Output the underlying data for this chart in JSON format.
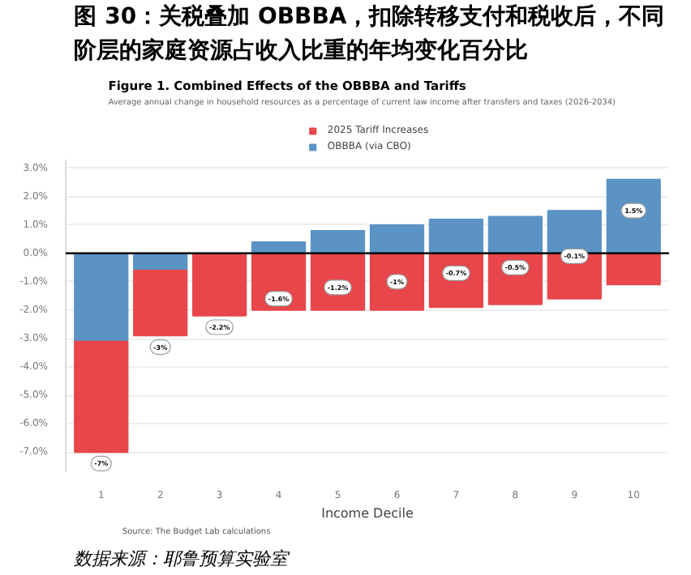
{
  "chart_data": {
    "type": "bar",
    "title": "图 30：关税叠加 OBBBA，扣除转移支付和税收后，不同阶层的家庭资源占收入比重的年均变化百分比",
    "subtitle": "Figure 1. Combined Effects of the OBBBA and Tariffs",
    "annotations": [
      "Average annual change in household resources as a percentage of current law income after transfers and taxes (2026-2034)",
      "Source: The Budget Lab calculations",
      "数据来源：耶鲁预算实验室"
    ],
    "xlabel": "Income Decile",
    "categories": [
      "1",
      "2",
      "3",
      "4",
      "5",
      "6",
      "7",
      "8",
      "9",
      "10"
    ],
    "stacked": true,
    "series": [
      {
        "name": "OBBBA (via CBO)",
        "color": "#5b93c5",
        "values": [
          -3.1,
          -0.6,
          0,
          0.4,
          0.8,
          1.0,
          1.2,
          1.3,
          1.5,
          2.6
        ]
      },
      {
        "name": "2025 Tariff Increases",
        "color": "#e8464a",
        "values": [
          -3.9,
          -2.3,
          -2.2,
          -2.0,
          -2.0,
          -2.0,
          -1.9,
          -1.8,
          -1.6,
          -1.1
        ]
      }
    ],
    "totals": [
      "-7%",
      "-3%",
      "-2.2%",
      "-1.6%",
      "-1.2%",
      "-1%",
      "-0.7%",
      "-0.5%",
      "-0.1%",
      "1.5%"
    ],
    "ylim": [
      -7.7,
      3.3
    ],
    "yticks": [
      {
        "value": -7,
        "label": "-7.0%"
      },
      {
        "value": -6,
        "label": "-6.0%"
      },
      {
        "value": -5,
        "label": "-5.0%"
      },
      {
        "value": -4,
        "label": "-4.0%"
      },
      {
        "value": -3,
        "label": "-3.0%"
      },
      {
        "value": -2,
        "label": "-2.0%"
      },
      {
        "value": -1,
        "label": "-1.0%"
      },
      {
        "value": 0,
        "label": "0.0%"
      },
      {
        "value": 1,
        "label": "1.0%"
      },
      {
        "value": 2,
        "label": "2.0%"
      },
      {
        "value": 3,
        "label": "3.0%"
      }
    ],
    "ref_lines": [
      {
        "axis": "y",
        "value": 0,
        "color": "#000000"
      }
    ],
    "grid": "y",
    "legend": "top"
  }
}
